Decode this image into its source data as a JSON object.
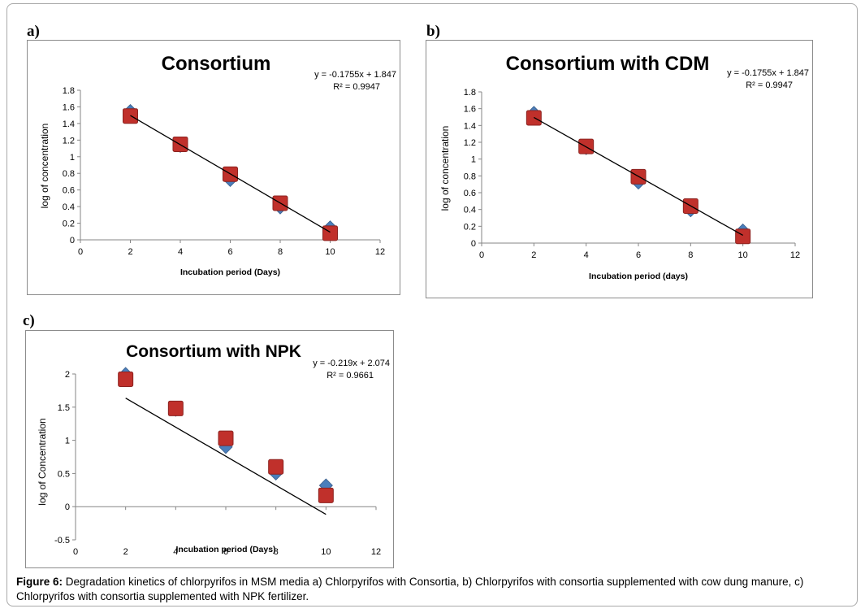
{
  "panels": [
    {
      "letter": "a)"
    },
    {
      "letter": "b)"
    },
    {
      "letter": "c)"
    }
  ],
  "caption": {
    "label": "Figure 6:",
    "text": " Degradation kinetics of chlorpyrifos in MSM media a) Chlorpyrifos with Consortia, b) Chlorpyrifos with consortia supplemented with cow dung manure, c) Chlorpyrifos with consortia supplemented with NPK fertilizer."
  },
  "colors": {
    "series_diamond": "#4a7ebb",
    "series_square": "#c0302b",
    "trendline": "#000000",
    "axis": "#868686"
  },
  "chart_data": [
    {
      "type": "scatter",
      "title": "Consortium",
      "xlabel": "Incubation period (Days)",
      "ylabel": "log of concentration",
      "xlim": [
        0,
        12
      ],
      "ylim": [
        0,
        1.8
      ],
      "x_ticks": [
        "0",
        "2",
        "4",
        "6",
        "8",
        "10",
        "12"
      ],
      "y_ticks": [
        "0",
        "0.2",
        "0.4",
        "0.6",
        "0.8",
        "1",
        "1.2",
        "1.4",
        "1.6",
        "1.8"
      ],
      "grid": false,
      "series": [
        {
          "marker": "diamond",
          "x": [
            2,
            4,
            6,
            8,
            10
          ],
          "y": [
            1.55,
            1.13,
            0.72,
            0.39,
            0.15
          ]
        },
        {
          "marker": "square",
          "x": [
            2,
            4,
            6,
            8,
            10
          ],
          "y": [
            1.49,
            1.15,
            0.79,
            0.44,
            0.08
          ]
        }
      ],
      "trendline": {
        "slope": -0.1755,
        "intercept": 1.847,
        "x_range": [
          2,
          10
        ]
      },
      "equation": "y = -0.1755x + 1.847",
      "r2": "R² = 0.9947"
    },
    {
      "type": "scatter",
      "title": "Consortium with CDM",
      "xlabel": "Incubation period (days)",
      "ylabel": "log of concentration",
      "xlim": [
        0,
        12
      ],
      "ylim": [
        0,
        1.8
      ],
      "x_ticks": [
        "0",
        "2",
        "4",
        "6",
        "8",
        "10",
        "12"
      ],
      "y_ticks": [
        "0",
        "0.2",
        "0.4",
        "0.6",
        "0.8",
        "1",
        "1.2",
        "1.4",
        "1.6",
        "1.8"
      ],
      "grid": false,
      "series": [
        {
          "marker": "diamond",
          "x": [
            2,
            4,
            6,
            8,
            10
          ],
          "y": [
            1.55,
            1.13,
            0.72,
            0.39,
            0.15
          ]
        },
        {
          "marker": "square",
          "x": [
            2,
            4,
            6,
            8,
            10
          ],
          "y": [
            1.49,
            1.15,
            0.79,
            0.44,
            0.08
          ]
        }
      ],
      "trendline": {
        "slope": -0.1755,
        "intercept": 1.847,
        "x_range": [
          2,
          10
        ]
      },
      "equation": "y = -0.1755x + 1.847",
      "r2": "R² = 0.9947"
    },
    {
      "type": "scatter",
      "title": "Consortium with NPK",
      "xlabel": "Incubation period (Days)",
      "ylabel": "log of Concentration",
      "xlim": [
        0,
        12
      ],
      "ylim": [
        -0.5,
        2
      ],
      "x_ticks": [
        "0",
        "2",
        "4",
        "6",
        "8",
        "10",
        "12"
      ],
      "y_ticks": [
        "-0.5",
        "0",
        "0.5",
        "1",
        "1.5",
        "2"
      ],
      "grid": false,
      "series": [
        {
          "marker": "diamond",
          "x": [
            2,
            4,
            6,
            8,
            10
          ],
          "y": [
            2.0,
            1.46,
            0.9,
            0.5,
            0.32
          ]
        },
        {
          "marker": "square",
          "x": [
            2,
            4,
            6,
            8,
            10
          ],
          "y": [
            1.92,
            1.48,
            1.03,
            0.6,
            0.17
          ]
        }
      ],
      "trendline": {
        "slope": -0.219,
        "intercept": 2.074,
        "x_range": [
          2,
          10
        ]
      },
      "equation": "y = -0.219x + 2.074",
      "r2": "R² = 0.9661"
    }
  ]
}
